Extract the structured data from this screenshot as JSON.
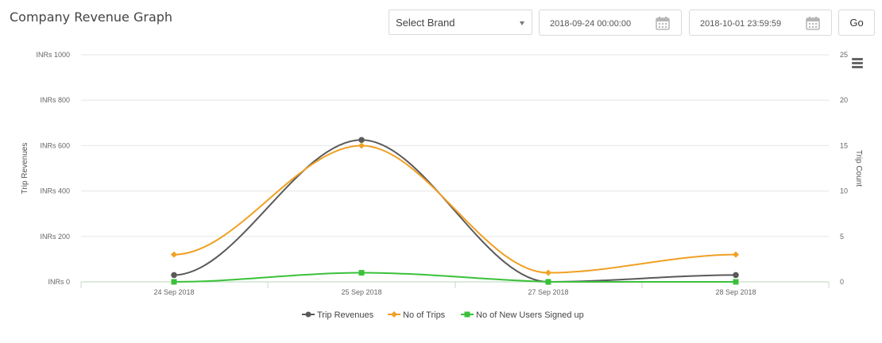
{
  "page": {
    "title": "Company Revenue Graph"
  },
  "filters": {
    "brand_select": {
      "value": "Select Brand"
    },
    "from_date": "2018-09-24 00:00:00",
    "to_date": "2018-10-01 23:59:59",
    "go_label": "Go"
  },
  "icons": {
    "calendar": "calendar-icon",
    "menu": "hamburger-menu-icon",
    "caret": "chevron-down-icon"
  },
  "chart_data": {
    "type": "line",
    "title": "",
    "categories": [
      "24 Sep 2018",
      "25 Sep 2018",
      "27 Sep 2018",
      "28 Sep 2018"
    ],
    "left_axis": {
      "label": "Trip Revenues",
      "ticks": [
        "INRs 0",
        "INRs 200",
        "INRs 400",
        "INRs 600",
        "INRs 800",
        "INRs 1000"
      ],
      "range": [
        0,
        1000
      ]
    },
    "right_axis": {
      "label": "Trip Count",
      "ticks": [
        "0",
        "5",
        "10",
        "15",
        "20",
        "25"
      ],
      "range": [
        0,
        25
      ]
    },
    "grid": true,
    "legend_position": "bottom-center",
    "series": [
      {
        "name": "Trip Revenues",
        "axis": "left",
        "color": "#5a5a5a",
        "marker": "circle",
        "values": [
          30,
          625,
          0,
          30
        ]
      },
      {
        "name": "No of Trips",
        "axis": "right",
        "color": "#f0a024",
        "marker": "diamond",
        "values": [
          3,
          15,
          1,
          3
        ]
      },
      {
        "name": "No of New Users Signed up",
        "axis": "right",
        "color": "#3ac13a",
        "marker": "square",
        "values": [
          0,
          1,
          0,
          0
        ]
      }
    ]
  }
}
